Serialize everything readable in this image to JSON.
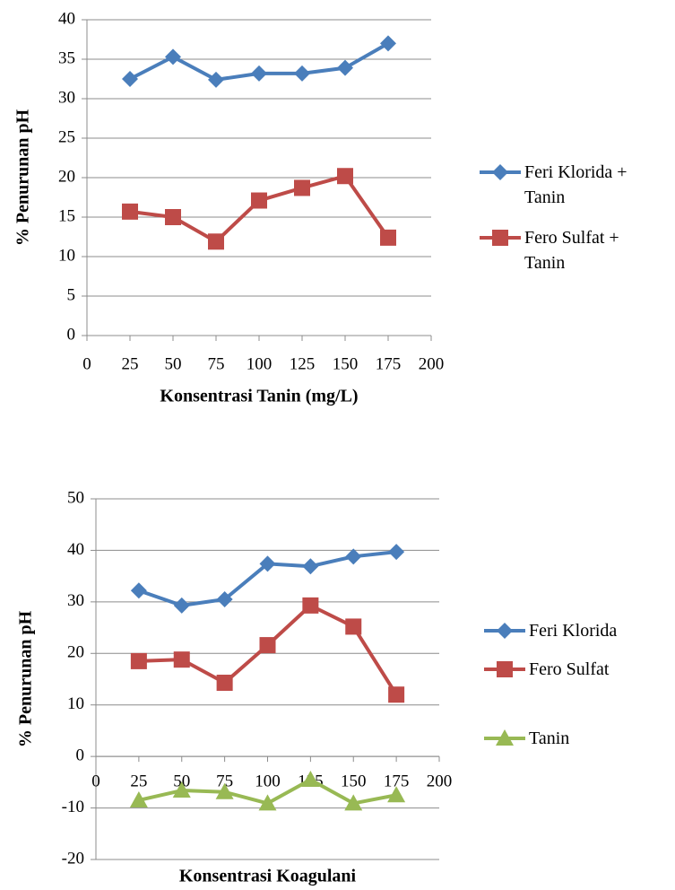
{
  "chart_data": [
    {
      "type": "line",
      "x_label": "Konsentrasi Tanin (mg/L)",
      "y_label": "% Penurunan pH",
      "x": [
        25,
        50,
        75,
        100,
        125,
        150,
        175
      ],
      "series": [
        {
          "name": "Feri Klorida + Tanin",
          "color": "#4a7ebb",
          "marker": "diamond",
          "values": [
            32.5,
            35.3,
            32.4,
            33.2,
            33.2,
            33.9,
            37.0
          ]
        },
        {
          "name": "Fero Sulfat + Tanin",
          "color": "#be4b48",
          "marker": "square",
          "values": [
            15.7,
            15.0,
            11.9,
            17.1,
            18.7,
            20.2,
            12.4
          ]
        }
      ],
      "xlim": [
        0,
        200
      ],
      "xticks": [
        0,
        25,
        50,
        75,
        100,
        125,
        150,
        175,
        200
      ],
      "ylim": [
        0,
        40
      ],
      "yticks": [
        0,
        5,
        10,
        15,
        20,
        25,
        30,
        35,
        40
      ],
      "grid": true,
      "legend": "right"
    },
    {
      "type": "line",
      "x_label": "Konsentrasi Koagulani",
      "y_label": "% Penurunan pH",
      "x": [
        25,
        50,
        75,
        100,
        125,
        150,
        175
      ],
      "series": [
        {
          "name": "Feri Klorida",
          "color": "#4a7ebb",
          "marker": "diamond",
          "values": [
            32.2,
            29.3,
            30.5,
            37.4,
            36.9,
            38.8,
            39.7
          ]
        },
        {
          "name": "Fero Sulfat",
          "color": "#be4b48",
          "marker": "square",
          "values": [
            18.5,
            18.8,
            14.3,
            21.6,
            29.3,
            25.2,
            12.0
          ]
        },
        {
          "name": "Tanin",
          "color": "#98b954",
          "marker": "triangle",
          "values": [
            -8.5,
            -6.6,
            -6.9,
            -9.1,
            -4.5,
            -9.1,
            -7.5
          ]
        }
      ],
      "xlim": [
        0,
        200
      ],
      "xticks": [
        0,
        25,
        50,
        75,
        100,
        125,
        150,
        175,
        200
      ],
      "ylim": [
        -20,
        50
      ],
      "yticks": [
        -20,
        -10,
        0,
        10,
        20,
        30,
        40,
        50
      ],
      "grid": true,
      "legend": "right"
    }
  ]
}
